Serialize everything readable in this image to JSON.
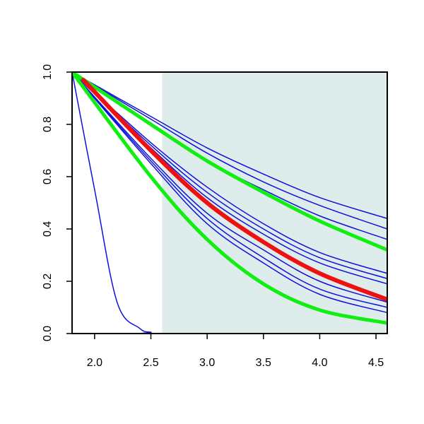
{
  "chart_data": {
    "type": "line",
    "title": "",
    "xlabel": "",
    "ylabel": "",
    "xlim": [
      1.8,
      4.6
    ],
    "ylim": [
      0.0,
      1.0
    ],
    "x_ticks": [
      2.0,
      2.5,
      3.0,
      3.5,
      4.0,
      4.5
    ],
    "x_tick_labels": [
      "2.0",
      "2.5",
      "3.0",
      "3.5",
      "4.0",
      "4.5"
    ],
    "y_ticks": [
      0.0,
      0.2,
      0.4,
      0.6,
      0.8,
      1.0
    ],
    "y_tick_labels": [
      "0.0",
      "0.2",
      "0.4",
      "0.6",
      "0.8",
      "1.0"
    ],
    "grid": false,
    "legend": "none",
    "shaded_region": {
      "x_from": 2.6,
      "x_to": 4.6,
      "color": "#deecec"
    },
    "colors": {
      "blue": "#1010dd",
      "green": "#11ee11",
      "red": "#ee1111"
    },
    "series": [
      {
        "color": "blue",
        "width": 1.5,
        "x": [
          1.8,
          2.0,
          2.2,
          2.4,
          2.5,
          2.6,
          4.6
        ],
        "values": [
          1.0,
          0.55,
          0.12,
          0.02,
          0.005,
          0.0,
          0.0
        ]
      },
      {
        "color": "blue",
        "width": 1.5,
        "x": [
          1.8,
          2.5,
          3.0,
          3.5,
          4.0,
          4.6
        ],
        "values": [
          1.0,
          0.83,
          0.71,
          0.61,
          0.52,
          0.44
        ]
      },
      {
        "color": "blue",
        "width": 1.5,
        "x": [
          1.8,
          2.5,
          3.0,
          3.5,
          4.0,
          4.6
        ],
        "values": [
          1.0,
          0.82,
          0.69,
          0.58,
          0.49,
          0.4
        ]
      },
      {
        "color": "blue",
        "width": 1.5,
        "x": [
          1.8,
          2.5,
          3.0,
          3.5,
          4.0,
          4.6
        ],
        "values": [
          1.0,
          0.8,
          0.66,
          0.55,
          0.45,
          0.36
        ]
      },
      {
        "color": "blue",
        "width": 1.5,
        "x": [
          1.8,
          2.5,
          3.0,
          3.5,
          4.0,
          4.6
        ],
        "values": [
          1.0,
          0.73,
          0.56,
          0.42,
          0.31,
          0.23
        ]
      },
      {
        "color": "blue",
        "width": 1.5,
        "x": [
          1.8,
          2.5,
          3.0,
          3.5,
          4.0,
          4.6
        ],
        "values": [
          1.0,
          0.72,
          0.54,
          0.4,
          0.29,
          0.21
        ]
      },
      {
        "color": "blue",
        "width": 1.5,
        "x": [
          1.8,
          2.5,
          3.0,
          3.5,
          4.0,
          4.6
        ],
        "values": [
          1.0,
          0.71,
          0.52,
          0.38,
          0.27,
          0.19
        ]
      },
      {
        "color": "blue",
        "width": 1.5,
        "x": [
          1.8,
          2.5,
          3.0,
          3.5,
          4.0,
          4.6
        ],
        "values": [
          1.0,
          0.67,
          0.46,
          0.32,
          0.2,
          0.12
        ]
      },
      {
        "color": "blue",
        "width": 1.5,
        "x": [
          1.8,
          2.5,
          3.0,
          3.5,
          4.0,
          4.6
        ],
        "values": [
          1.0,
          0.66,
          0.44,
          0.29,
          0.17,
          0.1
        ]
      },
      {
        "color": "blue",
        "width": 1.5,
        "x": [
          1.8,
          2.5,
          3.0,
          3.5,
          4.0,
          4.6
        ],
        "values": [
          1.0,
          0.65,
          0.42,
          0.27,
          0.15,
          0.08
        ]
      },
      {
        "color": "green",
        "width": 5,
        "x": [
          1.8,
          2.5,
          3.0,
          3.5,
          4.0,
          4.6
        ],
        "values": [
          1.0,
          0.8,
          0.66,
          0.54,
          0.43,
          0.32
        ]
      },
      {
        "color": "green",
        "width": 5,
        "x": [
          1.8,
          2.5,
          3.0,
          3.5,
          4.0,
          4.6
        ],
        "values": [
          1.0,
          0.6,
          0.36,
          0.19,
          0.09,
          0.04
        ]
      },
      {
        "color": "red",
        "width": 6,
        "x": [
          1.9,
          2.5,
          3.0,
          3.5,
          4.0,
          4.6
        ],
        "values": [
          0.97,
          0.7,
          0.5,
          0.35,
          0.23,
          0.13
        ]
      }
    ]
  }
}
